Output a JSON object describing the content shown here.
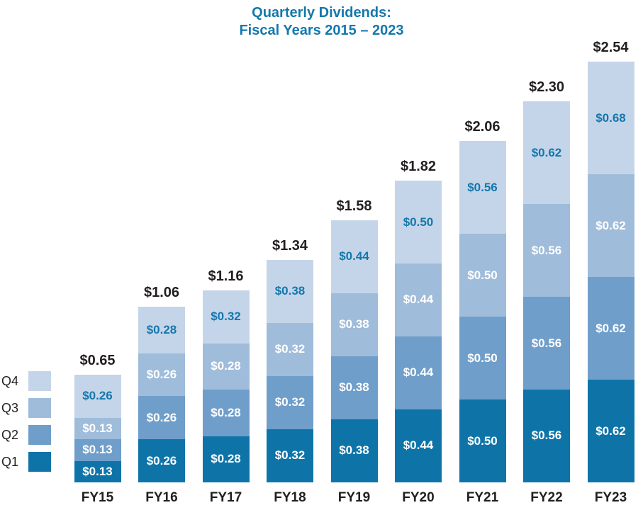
{
  "title": {
    "line1": "Quarterly Dividends:",
    "line2": "Fiscal Years 2015 – 2023"
  },
  "legend": [
    {
      "label": "Q4",
      "color": "#c5d5e9"
    },
    {
      "label": "Q3",
      "color": "#9fbcda"
    },
    {
      "label": "Q2",
      "color": "#6f9eca"
    },
    {
      "label": "Q1",
      "color": "#0e74a8"
    }
  ],
  "colors": {
    "title": "#1478ac",
    "total_label": "#231f20",
    "axis_label": "#231f20",
    "legend_label": "#231f20",
    "q4_segment_label": "#1478ac",
    "segment_label": "#ffffff"
  },
  "chart_data": {
    "type": "bar",
    "stacked": true,
    "title": "Quarterly Dividends: Fiscal Years 2015 – 2023",
    "xlabel": "",
    "ylabel": "",
    "ylim": [
      0,
      2.54
    ],
    "grid": false,
    "legend_position": "bottom-left",
    "categories": [
      "FY15",
      "FY16",
      "FY17",
      "FY18",
      "FY19",
      "FY20",
      "FY21",
      "FY22",
      "FY23"
    ],
    "series": [
      {
        "name": "Q1",
        "color": "#0e74a8",
        "label_color": "#ffffff",
        "values": [
          0.13,
          0.26,
          0.28,
          0.32,
          0.38,
          0.44,
          0.5,
          0.56,
          0.62
        ]
      },
      {
        "name": "Q2",
        "color": "#6f9eca",
        "label_color": "#ffffff",
        "values": [
          0.13,
          0.26,
          0.28,
          0.32,
          0.38,
          0.44,
          0.5,
          0.56,
          0.62
        ]
      },
      {
        "name": "Q3",
        "color": "#9fbcda",
        "label_color": "#ffffff",
        "values": [
          0.13,
          0.26,
          0.28,
          0.32,
          0.38,
          0.44,
          0.5,
          0.56,
          0.62
        ]
      },
      {
        "name": "Q4",
        "color": "#c5d5e9",
        "label_color": "#1478ac",
        "values": [
          0.26,
          0.28,
          0.32,
          0.38,
          0.44,
          0.5,
          0.56,
          0.62,
          0.68
        ]
      }
    ],
    "totals": [
      "$0.65",
      "$1.06",
      "$1.16",
      "$1.34",
      "$1.58",
      "$1.82",
      "$2.06",
      "$2.30",
      "$2.54"
    ]
  }
}
